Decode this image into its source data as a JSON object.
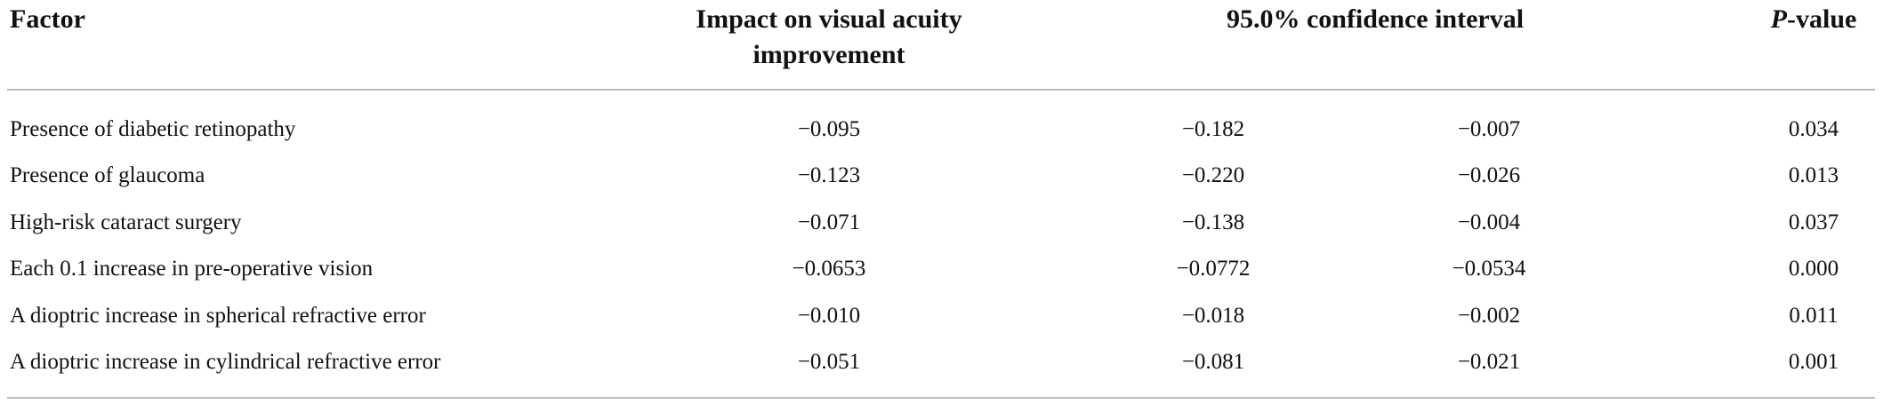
{
  "header": {
    "factor": "Factor",
    "impact": [
      "Impact on visual acuity",
      "improvement"
    ],
    "confidence_interval": "95.0% confidence interval",
    "p_value": {
      "italic": "P",
      "rest": "-value"
    }
  },
  "table": {
    "rows": [
      [
        "Presence of diabetic retinopathy",
        "−0.095",
        "−0.182",
        "−0.007",
        "0.034"
      ],
      [
        "Presence of glaucoma",
        "−0.123",
        "−0.220",
        "−0.026",
        "0.013"
      ],
      [
        "High-risk cataract surgery",
        "−0.071",
        "−0.138",
        "−0.004",
        "0.037"
      ],
      [
        "Each 0.1 increase in pre-operative vision",
        "−0.0653",
        "−0.0772",
        "−0.0534",
        "0.000"
      ],
      [
        "A dioptric increase in spherical refractive error",
        "−0.010",
        "−0.018",
        "−0.002",
        "0.011"
      ],
      [
        "A dioptric increase in cylindrical refractive error",
        "−0.051",
        "−0.081",
        "−0.021",
        "0.001"
      ]
    ]
  }
}
